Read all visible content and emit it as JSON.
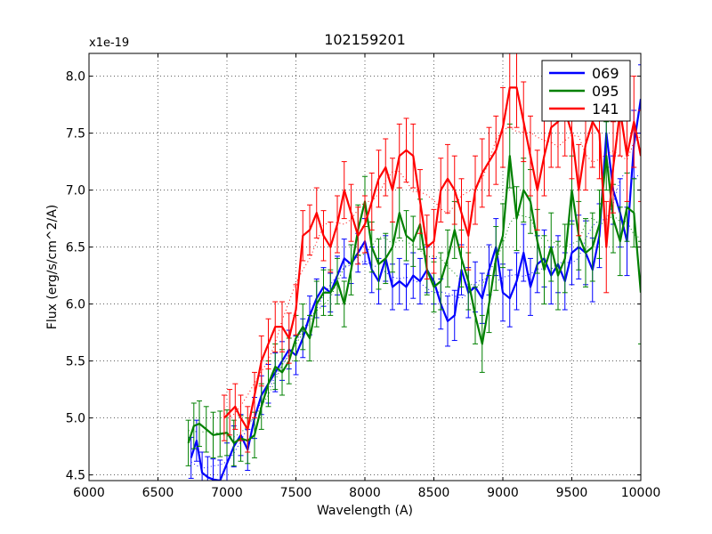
{
  "chart_data": {
    "type": "line",
    "title": "102159201",
    "xlabel": "Wavelength (A)",
    "ylabel": "Flux (erg/s/cm^2/A)",
    "offset_text": "x1e-19",
    "xlim": [
      6000,
      10000
    ],
    "ylim": [
      4.45,
      8.2
    ],
    "xticks": [
      6000,
      6500,
      7000,
      7500,
      8000,
      8500,
      9000,
      9500,
      10000
    ],
    "yticks": [
      4.5,
      5.0,
      5.5,
      6.0,
      6.5,
      7.0,
      7.5,
      8.0
    ],
    "grid": true,
    "legend_position": "top-right",
    "series": [
      {
        "name": "069",
        "color": "#0000ff",
        "x": [
          6740,
          6780,
          6820,
          6860,
          6900,
          6950,
          7000,
          7050,
          7100,
          7150,
          7200,
          7250,
          7300,
          7350,
          7400,
          7450,
          7500,
          7550,
          7600,
          7650,
          7700,
          7750,
          7800,
          7850,
          7900,
          7950,
          8000,
          8050,
          8100,
          8150,
          8200,
          8250,
          8300,
          8350,
          8400,
          8450,
          8500,
          8550,
          8600,
          8650,
          8700,
          8750,
          8800,
          8850,
          8900,
          8950,
          9000,
          9050,
          9100,
          9150,
          9200,
          9250,
          9300,
          9350,
          9400,
          9450,
          9500,
          9550,
          9600,
          9650,
          9700,
          9750,
          9800,
          9850,
          9900,
          9950,
          10000
        ],
        "y": [
          4.65,
          4.8,
          4.52,
          4.48,
          4.46,
          4.45,
          4.6,
          4.75,
          4.85,
          4.72,
          5.0,
          5.2,
          5.3,
          5.4,
          5.5,
          5.6,
          5.55,
          5.7,
          5.9,
          6.05,
          6.15,
          6.1,
          6.25,
          6.4,
          6.35,
          6.45,
          6.55,
          6.3,
          6.2,
          6.4,
          6.15,
          6.2,
          6.15,
          6.25,
          6.2,
          6.3,
          6.2,
          6.0,
          5.85,
          5.9,
          6.3,
          6.1,
          6.15,
          6.05,
          6.3,
          6.5,
          6.1,
          6.05,
          6.2,
          6.45,
          6.15,
          6.35,
          6.4,
          6.25,
          6.35,
          6.2,
          6.45,
          6.5,
          6.45,
          6.3,
          6.6,
          7.5,
          7.0,
          6.8,
          6.55,
          7.4,
          7.8
        ],
        "err": [
          0.18,
          0.18,
          0.18,
          0.18,
          0.18,
          0.18,
          0.18,
          0.18,
          0.18,
          0.18,
          0.18,
          0.17,
          0.17,
          0.17,
          0.17,
          0.17,
          0.17,
          0.17,
          0.17,
          0.17,
          0.17,
          0.17,
          0.17,
          0.17,
          0.17,
          0.17,
          0.2,
          0.2,
          0.2,
          0.2,
          0.2,
          0.2,
          0.2,
          0.2,
          0.2,
          0.2,
          0.2,
          0.22,
          0.22,
          0.22,
          0.22,
          0.22,
          0.22,
          0.22,
          0.22,
          0.25,
          0.25,
          0.25,
          0.25,
          0.25,
          0.25,
          0.25,
          0.25,
          0.25,
          0.25,
          0.25,
          0.28,
          0.28,
          0.28,
          0.28,
          0.28,
          0.3,
          0.3,
          0.3,
          0.3,
          0.3,
          0.3
        ]
      },
      {
        "name": "095",
        "color": "#008000",
        "x": [
          6720,
          6760,
          6800,
          6850,
          6900,
          6950,
          7000,
          7050,
          7100,
          7150,
          7200,
          7250,
          7300,
          7350,
          7400,
          7450,
          7500,
          7550,
          7600,
          7650,
          7700,
          7750,
          7800,
          7850,
          7900,
          7950,
          8000,
          8050,
          8100,
          8150,
          8200,
          8250,
          8300,
          8350,
          8400,
          8450,
          8500,
          8550,
          8600,
          8650,
          8700,
          8750,
          8800,
          8850,
          8900,
          8950,
          9000,
          9050,
          9100,
          9150,
          9200,
          9250,
          9300,
          9350,
          9400,
          9450,
          9500,
          9550,
          9600,
          9650,
          9700,
          9750,
          9800,
          9850,
          9900,
          9950,
          10000
        ],
        "y": [
          4.78,
          4.93,
          4.95,
          4.9,
          4.85,
          4.86,
          4.87,
          4.78,
          4.82,
          4.8,
          4.85,
          5.1,
          5.3,
          5.45,
          5.4,
          5.5,
          5.7,
          5.8,
          5.7,
          6.0,
          6.1,
          6.1,
          6.2,
          6.0,
          6.3,
          6.65,
          6.9,
          6.5,
          6.35,
          6.4,
          6.5,
          6.8,
          6.6,
          6.55,
          6.7,
          6.3,
          6.15,
          6.2,
          6.4,
          6.65,
          6.4,
          6.2,
          5.9,
          5.65,
          6.0,
          6.4,
          6.6,
          7.3,
          6.75,
          7.0,
          6.9,
          6.55,
          6.3,
          6.5,
          6.25,
          6.4,
          7.0,
          6.6,
          6.45,
          6.5,
          6.7,
          7.3,
          6.75,
          6.55,
          6.85,
          6.8,
          6.1
        ],
        "err": [
          0.2,
          0.2,
          0.2,
          0.2,
          0.2,
          0.2,
          0.2,
          0.2,
          0.2,
          0.2,
          0.2,
          0.2,
          0.2,
          0.2,
          0.2,
          0.2,
          0.2,
          0.2,
          0.2,
          0.2,
          0.2,
          0.2,
          0.2,
          0.2,
          0.22,
          0.22,
          0.22,
          0.22,
          0.22,
          0.22,
          0.22,
          0.22,
          0.22,
          0.22,
          0.22,
          0.22,
          0.22,
          0.25,
          0.25,
          0.25,
          0.25,
          0.25,
          0.25,
          0.25,
          0.25,
          0.28,
          0.28,
          0.28,
          0.28,
          0.28,
          0.28,
          0.28,
          0.3,
          0.3,
          0.3,
          0.3,
          0.3,
          0.3,
          0.3,
          0.3,
          0.3,
          0.3,
          0.3,
          0.3,
          0.3,
          0.3,
          0.45
        ]
      },
      {
        "name": "141",
        "color": "#ff0000",
        "x": [
          6980,
          7020,
          7060,
          7100,
          7150,
          7200,
          7250,
          7300,
          7350,
          7400,
          7450,
          7500,
          7550,
          7600,
          7650,
          7700,
          7750,
          7800,
          7850,
          7900,
          7950,
          8000,
          8050,
          8100,
          8150,
          8200,
          8250,
          8300,
          8350,
          8400,
          8450,
          8500,
          8550,
          8600,
          8650,
          8700,
          8750,
          8800,
          8850,
          8900,
          8950,
          9000,
          9050,
          9100,
          9150,
          9200,
          9250,
          9300,
          9350,
          9400,
          9450,
          9500,
          9550,
          9600,
          9650,
          9700,
          9750,
          9800,
          9850,
          9900,
          9950,
          10000
        ],
        "y": [
          5.0,
          5.05,
          5.1,
          5.0,
          4.9,
          5.2,
          5.5,
          5.65,
          5.8,
          5.8,
          5.7,
          5.95,
          6.6,
          6.65,
          6.8,
          6.6,
          6.5,
          6.7,
          7.0,
          6.8,
          6.6,
          6.7,
          6.9,
          7.1,
          7.2,
          7.0,
          7.3,
          7.35,
          7.3,
          6.9,
          6.5,
          6.55,
          7.0,
          7.1,
          7.0,
          6.8,
          6.6,
          7.0,
          7.15,
          7.25,
          7.35,
          7.55,
          7.9,
          7.9,
          7.6,
          7.3,
          7.0,
          7.3,
          7.55,
          7.6,
          7.7,
          7.5,
          7.0,
          7.4,
          7.6,
          7.5,
          6.5,
          7.2,
          7.7,
          7.3,
          7.6,
          7.3
        ],
        "err": [
          0.2,
          0.2,
          0.2,
          0.2,
          0.2,
          0.2,
          0.22,
          0.22,
          0.22,
          0.22,
          0.22,
          0.22,
          0.22,
          0.22,
          0.22,
          0.22,
          0.22,
          0.25,
          0.25,
          0.25,
          0.25,
          0.25,
          0.25,
          0.25,
          0.25,
          0.28,
          0.28,
          0.28,
          0.28,
          0.28,
          0.28,
          0.28,
          0.28,
          0.3,
          0.3,
          0.3,
          0.3,
          0.3,
          0.3,
          0.3,
          0.3,
          0.35,
          0.35,
          0.35,
          0.35,
          0.35,
          0.35,
          0.35,
          0.35,
          0.4,
          0.4,
          0.4,
          0.4,
          0.4,
          0.4,
          0.4,
          0.4,
          0.4,
          0.4,
          0.4,
          0.4,
          0.4
        ]
      }
    ]
  }
}
